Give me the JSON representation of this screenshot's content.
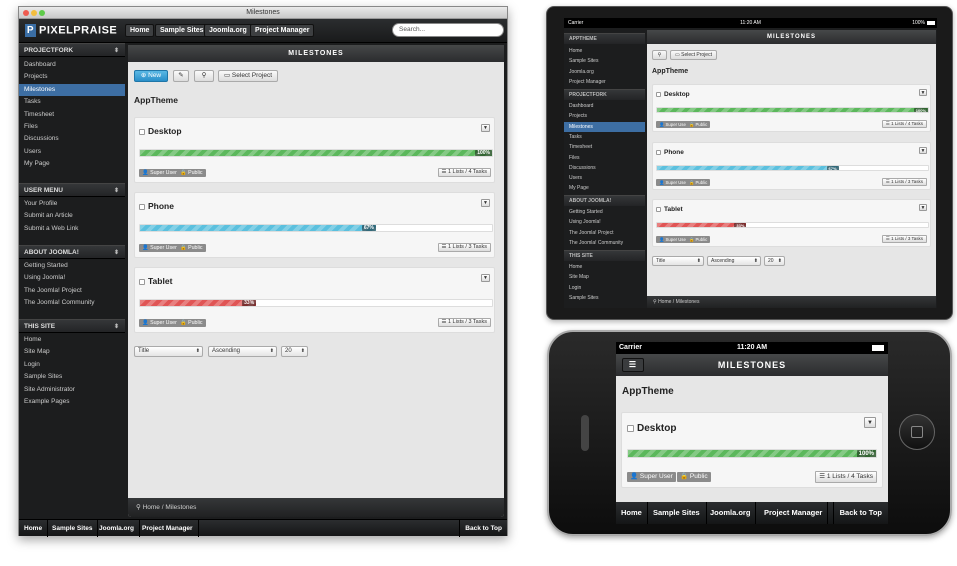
{
  "window_title": "Milestones",
  "brand": "PIXELPRAISE",
  "top_nav": [
    "Home",
    "Sample Sites",
    "Joomla.org",
    "Project Manager"
  ],
  "search_placeholder": "Search...",
  "sidebar": [
    {
      "header": "PROJECTFORK",
      "items": [
        "Dashboard",
        "Projects",
        "Milestones",
        "Tasks",
        "Timesheet",
        "Files",
        "Discussions",
        "Users",
        "My Page"
      ],
      "active": 2
    },
    {
      "header": "USER MENU",
      "items": [
        "Your Profile",
        "Submit an Article",
        "Submit a Web Link"
      ]
    },
    {
      "header": "ABOUT JOOMLA!",
      "items": [
        "Getting Started",
        "Using Joomla!",
        "The Joomla! Project",
        "The Joomla! Community"
      ]
    },
    {
      "header": "THIS SITE",
      "items": [
        "Home",
        "Site Map",
        "Login",
        "Sample Sites",
        "Site Administrator",
        "Example Pages"
      ]
    }
  ],
  "page_heading": "MILESTONES",
  "toolbar": {
    "new": "New",
    "select_project": "Select Project"
  },
  "project": "AppTheme",
  "milestones": [
    {
      "title": "Desktop",
      "percent": 100,
      "percent_label": "100%",
      "color": "#5cb85c",
      "author": "Super User",
      "access": "Public",
      "lists": "1 Lists / 4 Tasks"
    },
    {
      "title": "Phone",
      "percent": 67,
      "percent_label": "67%",
      "color": "#5bc0de",
      "author": "Super User",
      "access": "Public",
      "lists": "1 Lists / 3 Tasks"
    },
    {
      "title": "Tablet",
      "percent": 33,
      "percent_label": "33%",
      "color": "#e05555",
      "author": "Super User",
      "access": "Public",
      "lists": "1 Lists / 3 Tasks"
    }
  ],
  "filters": {
    "sort": "Title",
    "order": "Ascending",
    "limit": "20"
  },
  "breadcrumb": "Home / Milestones",
  "footer_nav": [
    "Home",
    "Sample Sites",
    "Joomla.org",
    "Project Manager"
  ],
  "back_to_top": "Back to Top",
  "ipad": {
    "carrier": "Carrier",
    "time": "11:20 AM",
    "battery": "100%",
    "sidebar": [
      {
        "header": "APPTHEME",
        "items": [
          "Home",
          "Sample Sites",
          "Joomla.org",
          "Project Manager"
        ]
      },
      {
        "header": "PROJECTFORK",
        "items": [
          "Dashboard",
          "Projects",
          "Milestones",
          "Tasks",
          "Timesheet",
          "Files",
          "Discussions",
          "Users",
          "My Page"
        ],
        "active": 2
      },
      {
        "header": "ABOUT JOOMLA!",
        "items": [
          "Getting Started",
          "Using Joomla!",
          "The Joomla! Project",
          "The Joomla! Community"
        ]
      },
      {
        "header": "THIS SITE",
        "items": [
          "Home",
          "Site Map",
          "Login",
          "Sample Sites"
        ]
      }
    ]
  },
  "iphone": {
    "carrier": "Carrier",
    "time": "11:20 AM",
    "footer_nav": [
      "Home",
      "Sample Sites",
      "Joomla.org",
      "Project Manager",
      "Back to Top"
    ]
  }
}
